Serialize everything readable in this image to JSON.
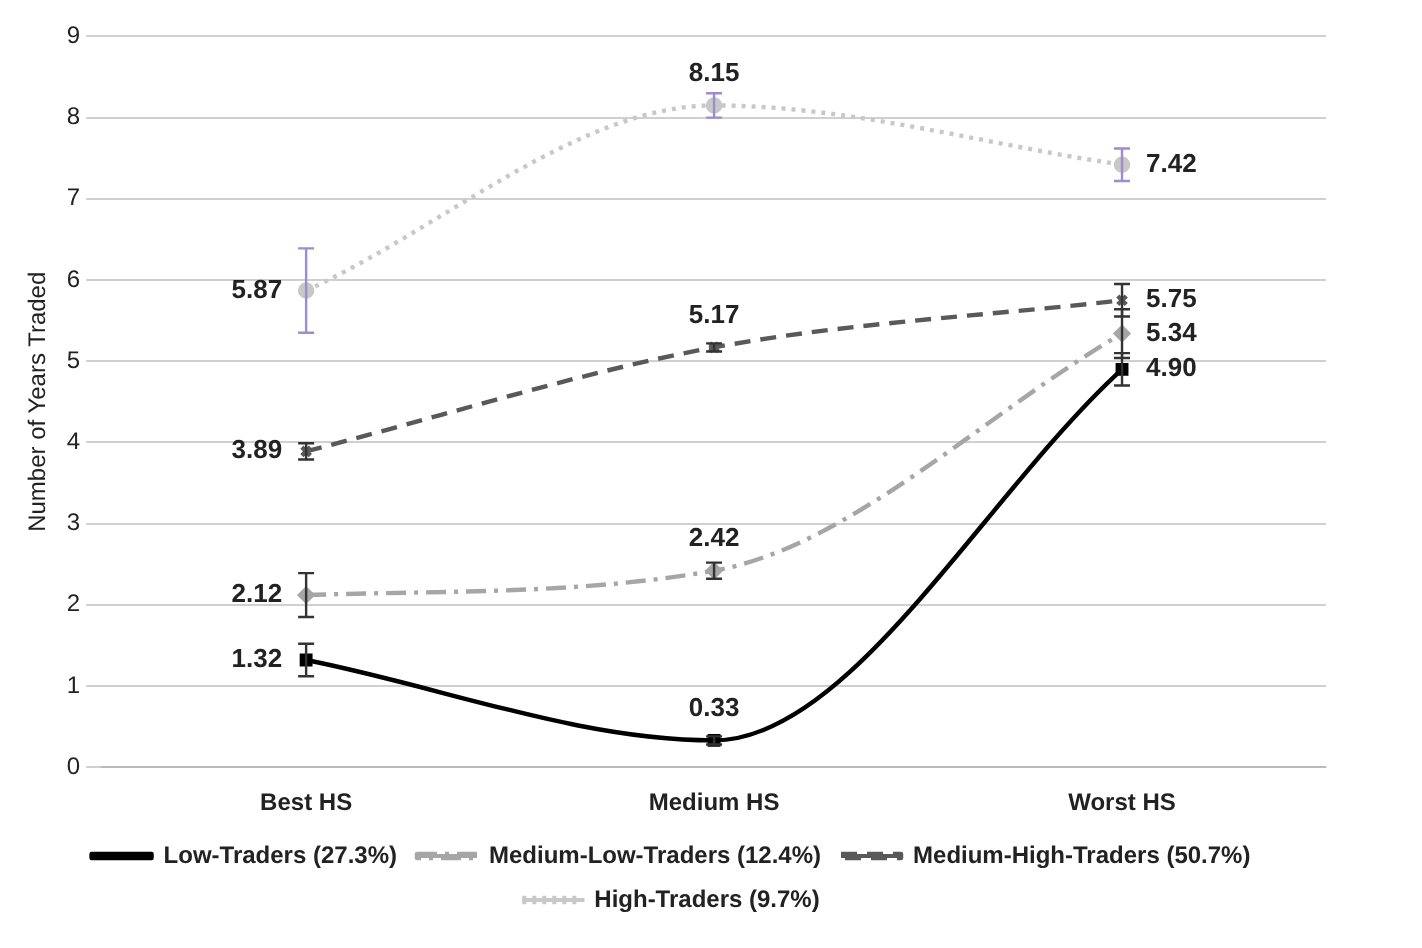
{
  "chart_data": {
    "type": "line",
    "ylabel": "Number of Years Traded",
    "categories": [
      "Best HS",
      "Medium HS",
      "Worst HS"
    ],
    "ylim": [
      0,
      9
    ],
    "yticks": [
      0,
      1,
      2,
      3,
      4,
      5,
      6,
      7,
      8,
      9
    ],
    "grid": "y",
    "legend": "bottom",
    "series": [
      {
        "name": "Low-Traders (27.3%)",
        "color": "#000000",
        "line_style": "solid",
        "marker": "square",
        "values": [
          1.32,
          0.33,
          4.9
        ],
        "value_labels": [
          "1.32",
          "0.33",
          "4.90"
        ],
        "errors": [
          0.2,
          0.05,
          0.2
        ]
      },
      {
        "name": "Medium-Low-Traders (12.4%)",
        "color": "#a6a6a6",
        "line_style": "dashdot",
        "marker": "diamond",
        "values": [
          2.12,
          2.42,
          5.34
        ],
        "value_labels": [
          "2.12",
          "2.42",
          "5.34"
        ],
        "errors": [
          0.27,
          0.1,
          0.3
        ]
      },
      {
        "name": "Medium-High-Traders (50.7%)",
        "color": "#595959",
        "line_style": "dashed",
        "marker": "cross",
        "values": [
          3.89,
          5.17,
          5.75
        ],
        "value_labels": [
          "3.89",
          "5.17",
          "5.75"
        ],
        "errors": [
          0.1,
          0.05,
          0.2
        ]
      },
      {
        "name": "High-Traders (9.7%)",
        "color": "#c8c8c8",
        "line_style": "dotted",
        "marker": "circle",
        "values": [
          5.87,
          8.15,
          7.42
        ],
        "value_labels": [
          "5.87",
          "8.15",
          "7.42"
        ],
        "errors": [
          0.52,
          0.15,
          0.2
        ]
      }
    ]
  }
}
